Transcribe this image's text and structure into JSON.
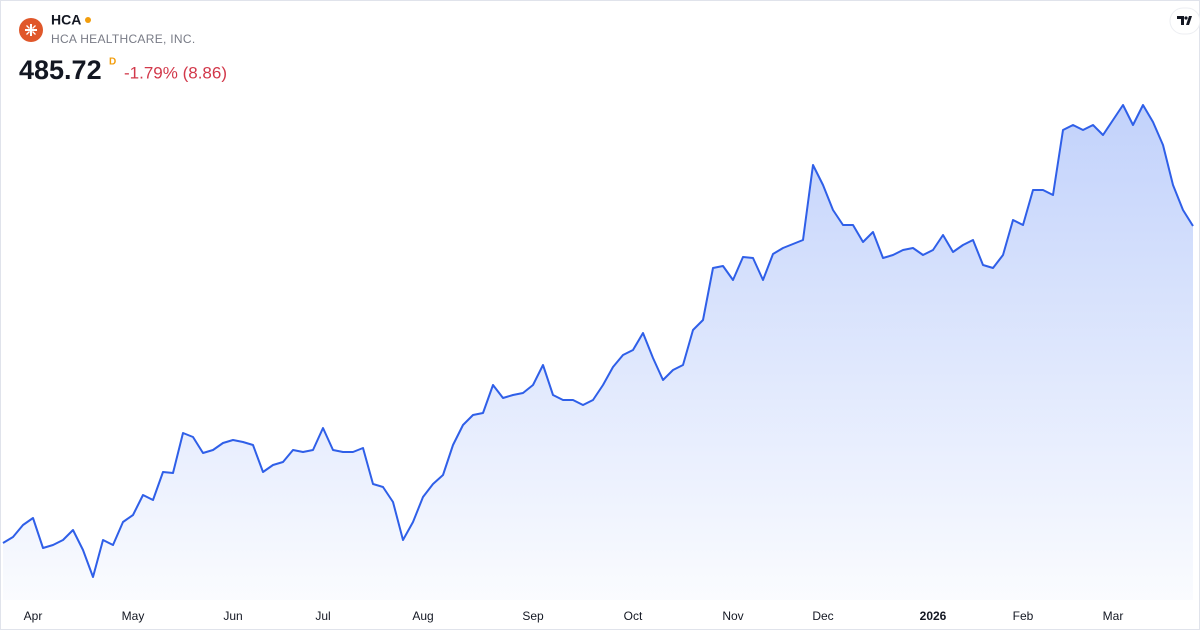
{
  "header": {
    "symbol": "HCA",
    "name": "HCA HEALTHCARE, INC.",
    "price": "485.72",
    "interval": "D",
    "change": "-1.79% (8.86)"
  },
  "chart_data": {
    "type": "area",
    "color": "#2f5fe8",
    "categories": [
      null,
      null,
      null,
      "Apr",
      null,
      null,
      null,
      null,
      null,
      null,
      null,
      null,
      null,
      "May",
      null,
      null,
      null,
      null,
      null,
      null,
      null,
      null,
      null,
      "Jun",
      null,
      null,
      null,
      null,
      null,
      null,
      null,
      null,
      "Jul",
      null,
      null,
      null,
      null,
      null,
      null,
      null,
      null,
      null,
      "Aug",
      null,
      null,
      null,
      null,
      null,
      null,
      null,
      null,
      null,
      null,
      "Sep",
      null,
      null,
      null,
      null,
      null,
      null,
      null,
      null,
      null,
      "Oct",
      null,
      null,
      null,
      null,
      null,
      null,
      null,
      null,
      null,
      "Nov",
      null,
      null,
      null,
      null,
      null,
      null,
      null,
      null,
      "Dec",
      null,
      null,
      null,
      null,
      null,
      null,
      null,
      null,
      null,
      null,
      "2026",
      null,
      null,
      null,
      null,
      null,
      null,
      null,
      null,
      "Feb",
      null,
      null,
      null,
      null,
      null,
      null,
      null,
      null,
      "Mar",
      null,
      null,
      null,
      null,
      null,
      null,
      null,
      null
    ],
    "values": [
      327.2,
      330.2,
      336.2,
      339.7,
      324.7,
      326.2,
      328.7,
      333.7,
      323.7,
      310.2,
      328.7,
      326.2,
      337.7,
      341.2,
      351.2,
      348.7,
      362.7,
      362.2,
      382.2,
      380.2,
      372.2,
      373.7,
      377.2,
      378.7,
      377.7,
      376.2,
      362.7,
      366.2,
      367.7,
      373.7,
      372.7,
      373.7,
      384.7,
      373.7,
      372.7,
      372.7,
      374.7,
      356.7,
      355.2,
      347.7,
      328.7,
      337.7,
      350.2,
      356.7,
      361.2,
      376.2,
      386.2,
      391.2,
      392.2,
      406.2,
      399.7,
      401.2,
      402.2,
      406.2,
      416.2,
      401.2,
      398.7,
      398.7,
      396.2,
      398.7,
      406.2,
      415.2,
      421.2,
      423.7,
      432.2,
      419.7,
      408.7,
      413.7,
      416.2,
      433.7,
      438.7,
      464.7,
      465.7,
      458.7,
      470.2,
      469.7,
      458.7,
      471.7,
      474.7,
      476.7,
      478.7,
      516.2,
      506.2,
      493.7,
      486.2,
      486.2,
      477.7,
      482.7,
      469.7,
      471.2,
      473.7,
      474.7,
      471.2,
      473.7,
      481.2,
      472.7,
      476.2,
      478.7,
      466.2,
      464.7,
      471.2,
      488.7,
      486.2,
      503.7,
      503.7,
      501.2,
      533.7,
      536.2,
      533.7,
      536.2,
      531.2,
      538.7,
      546.2,
      536.2,
      546.2,
      537.7,
      526.2,
      506.2,
      493.7,
      485.72
    ]
  }
}
